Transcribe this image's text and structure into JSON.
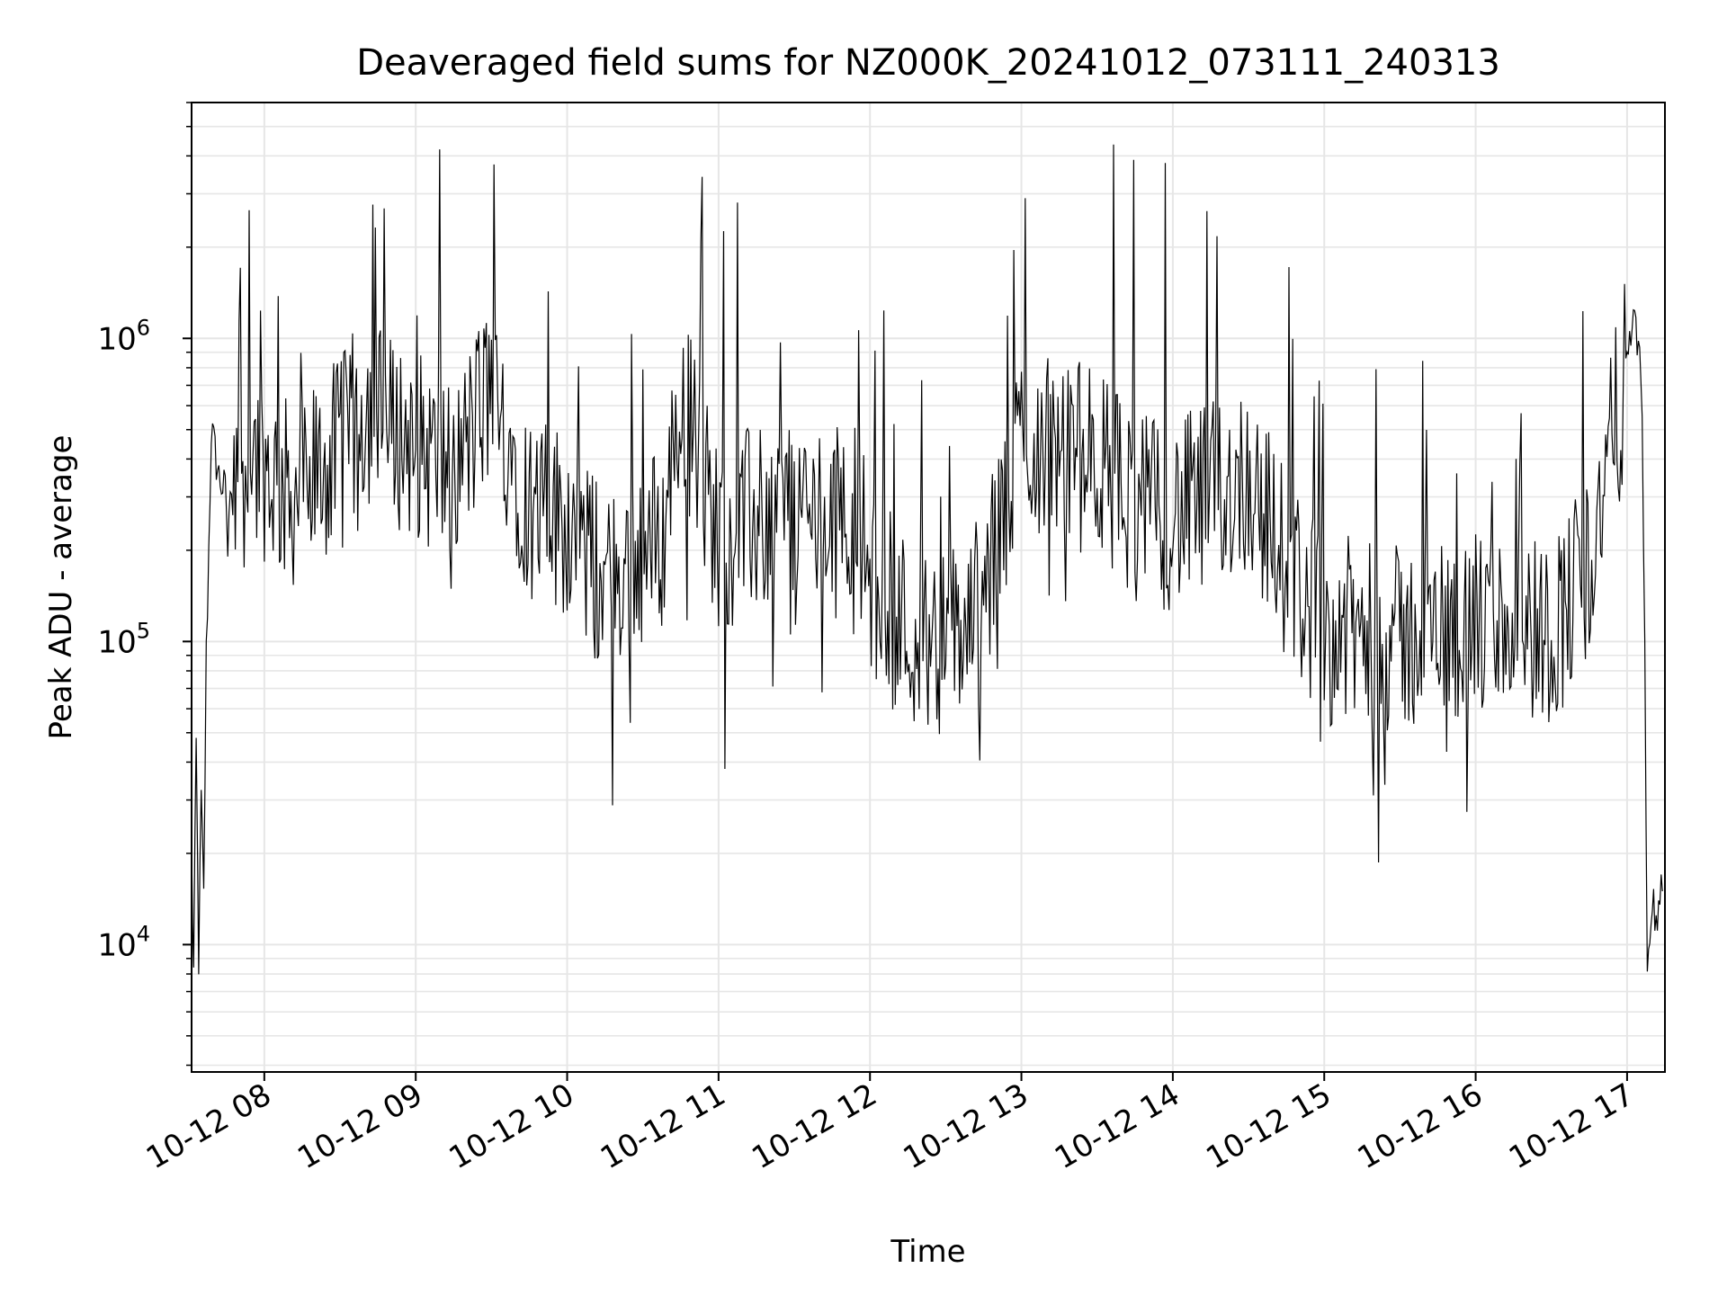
{
  "chart_data": {
    "type": "line",
    "title": "Deaveraged field sums for NZ000K_20241012_073111_240313",
    "xlabel": "Time",
    "ylabel": "Peak ADU - average",
    "yscale": "log",
    "xlim": [
      "2024-10-12T07:31:11",
      "2024-10-12T17:15:00"
    ],
    "ylim": [
      3800,
      6000000
    ],
    "grid": true,
    "line_color": "#000000",
    "grid_color": "#e6e6e6",
    "x_ticks": [
      {
        "value": "2024-10-12T08:00:00",
        "label": "10-12 08"
      },
      {
        "value": "2024-10-12T09:00:00",
        "label": "10-12 09"
      },
      {
        "value": "2024-10-12T10:00:00",
        "label": "10-12 10"
      },
      {
        "value": "2024-10-12T11:00:00",
        "label": "10-12 11"
      },
      {
        "value": "2024-10-12T12:00:00",
        "label": "10-12 12"
      },
      {
        "value": "2024-10-12T13:00:00",
        "label": "10-12 13"
      },
      {
        "value": "2024-10-12T14:00:00",
        "label": "10-12 14"
      },
      {
        "value": "2024-10-12T15:00:00",
        "label": "10-12 15"
      },
      {
        "value": "2024-10-12T16:00:00",
        "label": "10-12 16"
      },
      {
        "value": "2024-10-12T17:00:00",
        "label": "10-12 17"
      }
    ],
    "y_ticks": [
      {
        "value": 10000,
        "base": "10",
        "exp": "4"
      },
      {
        "value": 100000,
        "base": "10",
        "exp": "5"
      },
      {
        "value": 1000000,
        "base": "10",
        "exp": "6"
      }
    ],
    "series": [
      {
        "x": [
          "2024-10-12T07:31:11",
          "2024-10-12T07:32:00",
          "2024-10-12T07:33:00",
          "2024-10-12T07:34:00",
          "2024-10-12T07:35:00",
          "2024-10-12T07:36:00",
          "2024-10-12T07:37:00",
          "2024-10-12T07:38:00",
          "2024-10-12T07:39:00",
          "2024-10-12T07:42:00",
          "2024-10-12T07:45:00",
          "2024-10-12T07:50:00",
          "2024-10-12T07:55:00",
          "2024-10-12T08:00:00",
          "2024-10-12T08:10:00",
          "2024-10-12T08:20:00",
          "2024-10-12T08:30:00",
          "2024-10-12T08:40:00",
          "2024-10-12T08:50:00",
          "2024-10-12T09:00:00",
          "2024-10-12T09:15:00",
          "2024-10-12T09:30:00",
          "2024-10-12T09:45:00",
          "2024-10-12T10:00:00",
          "2024-10-12T10:15:00",
          "2024-10-12T10:30:00",
          "2024-10-12T10:38:00",
          "2024-10-12T10:45:00",
          "2024-10-12T11:00:00",
          "2024-10-12T11:15:00",
          "2024-10-12T11:30:00",
          "2024-10-12T11:45:00",
          "2024-10-12T11:55:00",
          "2024-10-12T12:00:00",
          "2024-10-12T12:15:00",
          "2024-10-12T12:30:00",
          "2024-10-12T12:45:00",
          "2024-10-12T13:00:00",
          "2024-10-12T13:15:00",
          "2024-10-12T13:30:00",
          "2024-10-12T13:45:00",
          "2024-10-12T14:00:00",
          "2024-10-12T14:15:00",
          "2024-10-12T14:30:00",
          "2024-10-12T14:45:00",
          "2024-10-12T15:00:00",
          "2024-10-12T15:15:00",
          "2024-10-12T15:30:00",
          "2024-10-12T15:45:00",
          "2024-10-12T16:00:00",
          "2024-10-12T16:15:00",
          "2024-10-12T16:30:00",
          "2024-10-12T16:45:00",
          "2024-10-12T16:55:00",
          "2024-10-12T17:00:00",
          "2024-10-12T17:03:00",
          "2024-10-12T17:05:00",
          "2024-10-12T17:06:00",
          "2024-10-12T17:07:00",
          "2024-10-12T17:08:00",
          "2024-10-12T17:10:00",
          "2024-10-12T17:12:00",
          "2024-10-12T17:14:00"
        ],
        "y": [
          20000,
          8000,
          45000,
          9000,
          30000,
          14000,
          90000,
          200000,
          500000,
          350000,
          300000,
          400000,
          420000,
          380000,
          300000,
          350000,
          420000,
          600000,
          500000,
          450000,
          350000,
          700000,
          280000,
          250000,
          150000,
          200000,
          220000,
          700000,
          220000,
          250000,
          280000,
          240000,
          300000,
          150000,
          110000,
          100000,
          130000,
          480000,
          420000,
          400000,
          280000,
          260000,
          300000,
          350000,
          180000,
          110000,
          105000,
          100000,
          110000,
          110000,
          115000,
          108000,
          180000,
          500000,
          800000,
          1100000,
          900000,
          600000,
          100000,
          8000,
          14000,
          12000,
          15000
        ]
      }
    ]
  }
}
